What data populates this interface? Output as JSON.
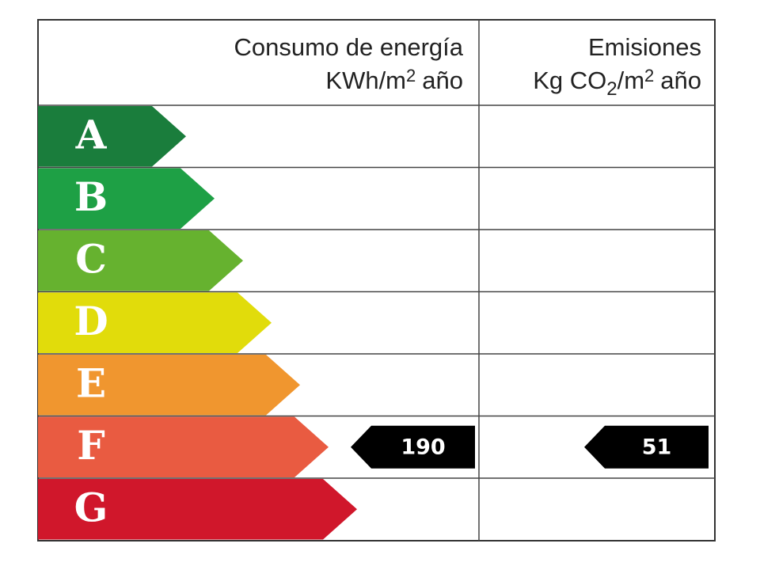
{
  "energy_header": {
    "line1": "Consumo de energía",
    "unit": "KWh/m",
    "unit_exp": "2",
    "unit_tail": "año"
  },
  "emissions_header": {
    "line1": "Emisiones",
    "unit": "Kg CO",
    "unit_sub": "2",
    "unit_mid": "/m",
    "unit_exp": "2",
    "unit_tail": "año"
  },
  "rows": [
    {
      "letter": "A",
      "color": "#1a7d3c"
    },
    {
      "letter": "B",
      "color": "#1ea045"
    },
    {
      "letter": "C",
      "color": "#66b22f"
    },
    {
      "letter": "D",
      "color": "#e1dc0b"
    },
    {
      "letter": "E",
      "color": "#f0962f"
    },
    {
      "letter": "F",
      "color": "#e95b41",
      "energy": 190,
      "emissions": 51
    },
    {
      "letter": "G",
      "color": "#d0172b"
    }
  ]
}
